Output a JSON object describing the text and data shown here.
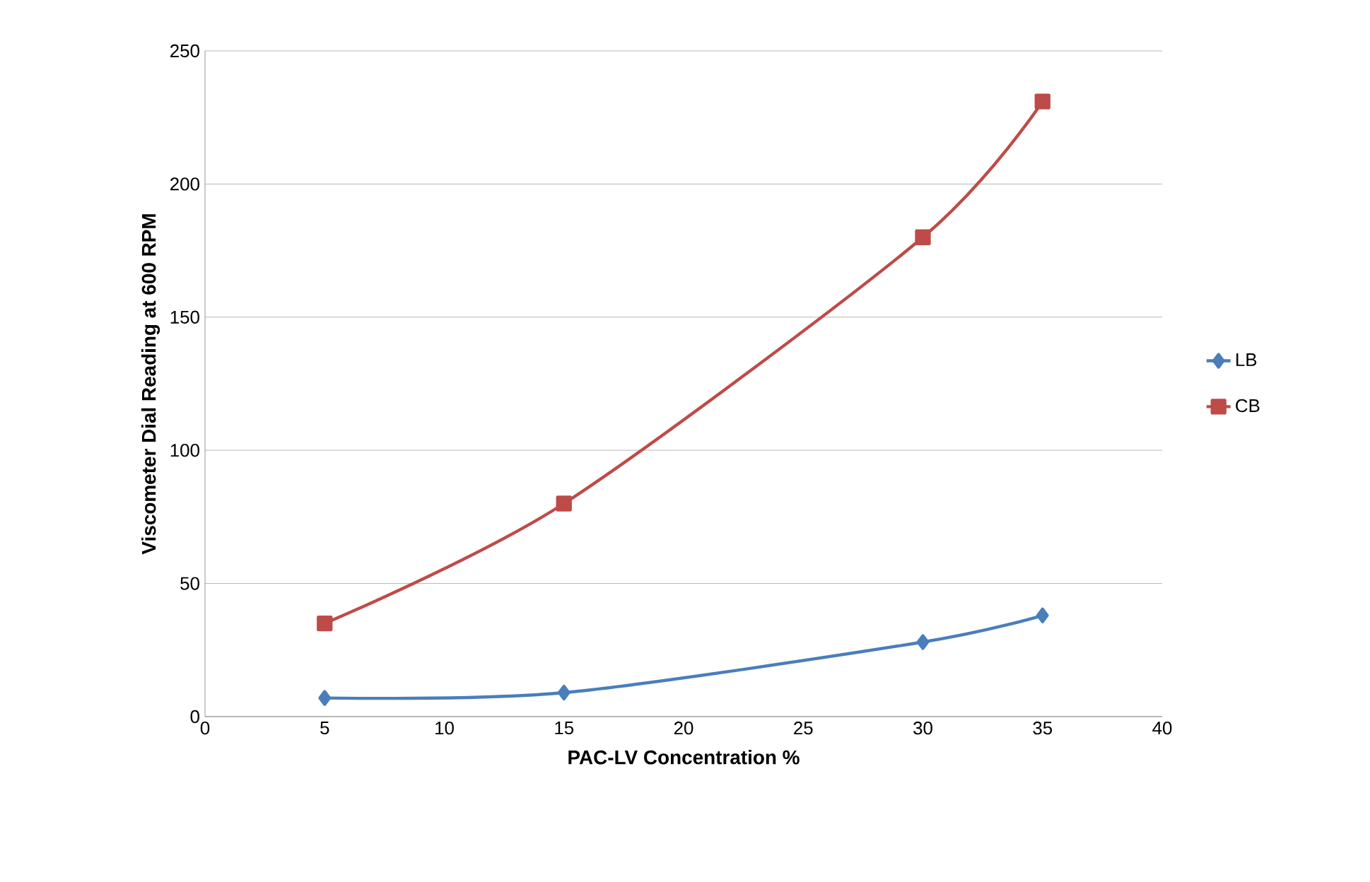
{
  "chart_data": {
    "type": "line",
    "xlabel": "PAC-LV Concentration %",
    "ylabel": "Viscometer Dial Reading at 600 RPM",
    "x": [
      5,
      15,
      30,
      35
    ],
    "series": [
      {
        "name": "LB",
        "color": "#4a7ebb",
        "marker": "diamond",
        "values": [
          7,
          9,
          28,
          38
        ]
      },
      {
        "name": "CB",
        "color": "#be4b48",
        "marker": "square",
        "values": [
          35,
          80,
          180,
          231
        ]
      }
    ],
    "xlim": [
      0,
      40
    ],
    "ylim": [
      0,
      250
    ],
    "xticks": [
      0,
      5,
      10,
      15,
      20,
      25,
      30,
      35,
      40
    ],
    "yticks": [
      0,
      50,
      100,
      150,
      200,
      250
    ],
    "grid": "y",
    "legend": "right",
    "line_style": "solid"
  }
}
